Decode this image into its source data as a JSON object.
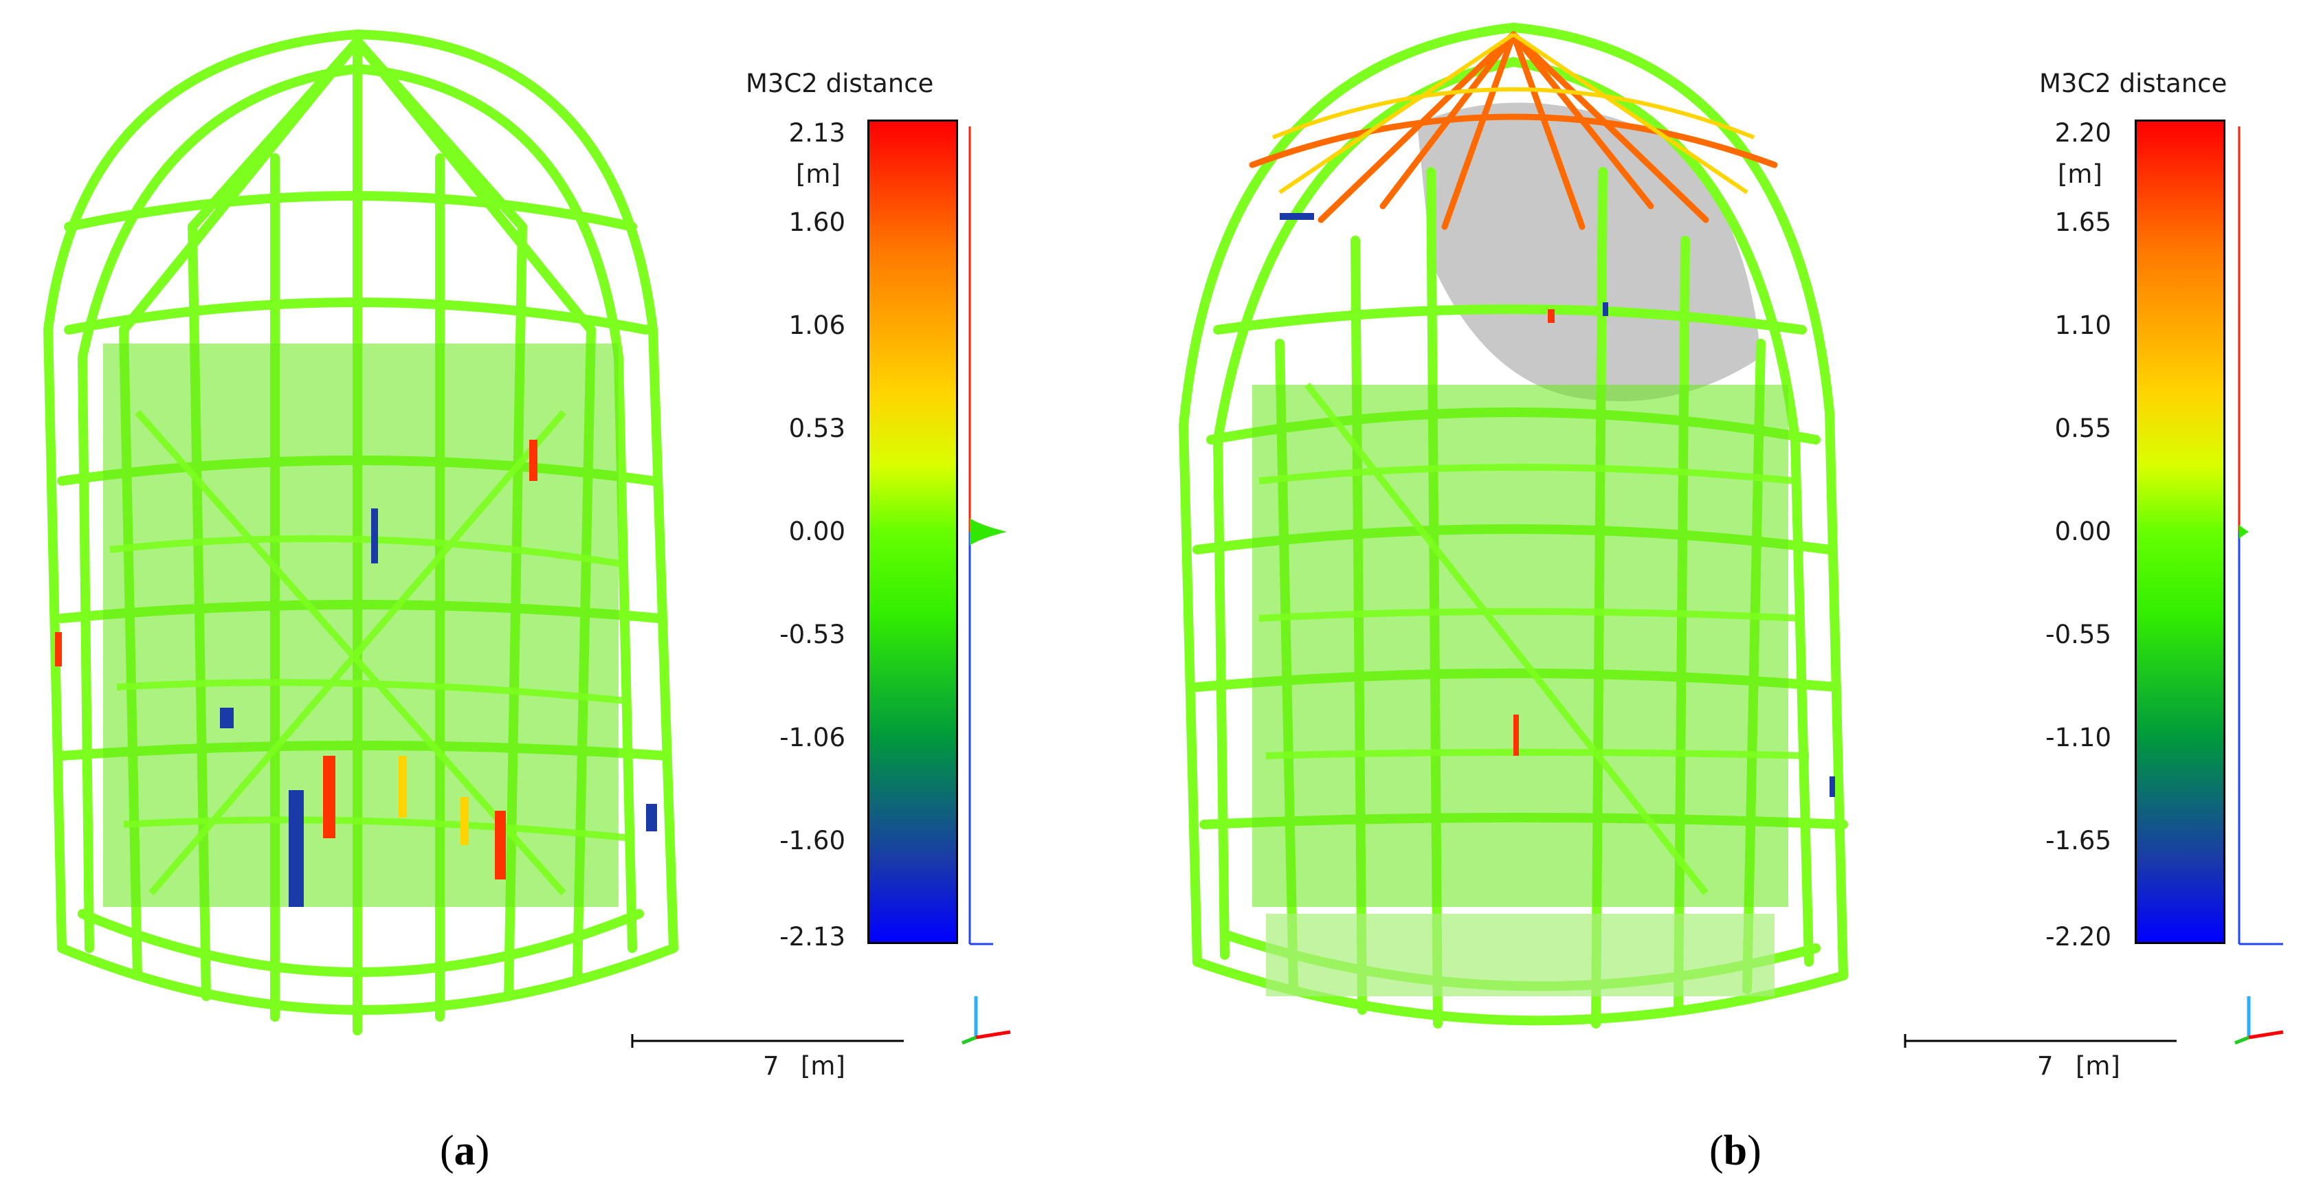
{
  "panels": [
    {
      "colorbar_title": "M3C2 distance",
      "unit": "[m]",
      "ticks": [
        "2.13",
        "1.60",
        "1.06",
        "0.53",
        "0.00",
        "-0.53",
        "-1.06",
        "-1.60",
        "-2.13"
      ],
      "scale_value": "7",
      "scale_unit": "[m]",
      "caption_open": "(",
      "caption_letter": "a",
      "caption_close": ")"
    },
    {
      "colorbar_title": "M3C2 distance",
      "unit": "[m]",
      "ticks": [
        "2.20",
        "1.65",
        "1.10",
        "0.55",
        "0.00",
        "-0.55",
        "-1.10",
        "-1.65",
        "-2.20"
      ],
      "scale_value": "7",
      "scale_unit": "[m]",
      "caption_open": "(",
      "caption_letter": "b",
      "caption_close": ")"
    }
  ],
  "colors": {
    "point_cloud": "#7cff1e",
    "high": "#ff0000",
    "low": "#0000ff",
    "background_surface": "#c8c8c8"
  }
}
